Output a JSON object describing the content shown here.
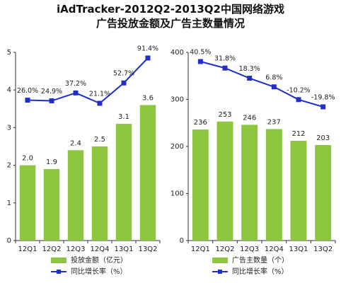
{
  "title_line1": "iAdTracker-2012Q2-2013Q2中国网络游戏",
  "title_line2": "广告投放金额及广告主数量情况",
  "colors": {
    "bar": "#8dc63f",
    "line": "#1f2fc8",
    "axis": "#333333",
    "text": "#222222"
  },
  "chart_data": [
    {
      "type": "bar",
      "categories": [
        "12Q1",
        "12Q2",
        "12Q3",
        "12Q4",
        "13Q1",
        "13Q2"
      ],
      "values": [
        2.0,
        1.9,
        2.4,
        2.5,
        3.1,
        3.6
      ],
      "value_labels": [
        "2.0",
        "1.9",
        "2.4",
        "2.5",
        "3.1",
        "3.6"
      ],
      "ylim": [
        0,
        5
      ],
      "yticks": [
        "0",
        "1",
        "2",
        "3",
        "4",
        "5"
      ],
      "legend": [
        "投放金额（亿元）",
        "同比增长率（%）"
      ],
      "line": {
        "values": [
          26.0,
          24.9,
          37.2,
          21.1,
          52.7,
          91.4
        ],
        "labels": [
          "26.0%",
          "24.9%",
          "37.2%",
          "21.1%",
          "52.7%",
          "91.4%"
        ]
      }
    },
    {
      "type": "bar",
      "categories": [
        "12Q1",
        "12Q2",
        "12Q3",
        "12Q4",
        "13Q1",
        "13Q2"
      ],
      "values": [
        236,
        253,
        246,
        237,
        212,
        203
      ],
      "value_labels": [
        "236",
        "253",
        "246",
        "237",
        "212",
        "203"
      ],
      "ylim": [
        0,
        400
      ],
      "yticks": [
        "0",
        "100",
        "200",
        "300",
        "400"
      ],
      "legend": [
        "广告主数量（个）",
        "同比增长率（%）"
      ],
      "line": {
        "values": [
          40.5,
          31.8,
          18.3,
          6.8,
          -10.2,
          -19.8
        ],
        "labels": [
          "40.5%",
          "31.8%",
          "18.3%",
          "6.8%",
          "-10.2%",
          "-19.8%"
        ]
      }
    }
  ]
}
